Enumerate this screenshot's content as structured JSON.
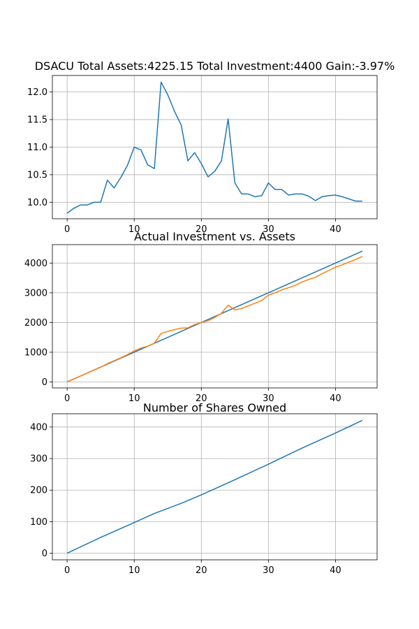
{
  "chart_data": [
    {
      "type": "line",
      "title": "DSACU Total Assets:4225.15  Total Investment:4400  Gain:-3.97%",
      "xlabel": "",
      "ylabel": "",
      "xlim": [
        -2.2,
        46.2
      ],
      "ylim": [
        9.7,
        12.3
      ],
      "xticks": [
        0,
        10,
        20,
        30,
        40
      ],
      "yticks": [
        10.0,
        10.5,
        11.0,
        11.5,
        12.0
      ],
      "ytick_labels": [
        "10.0",
        "10.5",
        "11.0",
        "11.5",
        "12.0"
      ],
      "grid": true,
      "series": [
        {
          "color": "#1f77b4",
          "x": [
            0,
            1,
            2,
            3,
            4,
            5,
            6,
            7,
            8,
            9,
            10,
            11,
            12,
            13,
            14,
            15,
            16,
            17,
            18,
            19,
            20,
            21,
            22,
            23,
            24,
            25,
            26,
            27,
            28,
            29,
            30,
            31,
            32,
            33,
            34,
            35,
            36,
            37,
            38,
            39,
            40,
            41,
            42,
            43,
            44
          ],
          "values": [
            9.8,
            9.89,
            9.95,
            9.95,
            10.0,
            10.0,
            10.4,
            10.26,
            10.45,
            10.67,
            11.0,
            10.95,
            10.68,
            10.61,
            12.18,
            11.95,
            11.65,
            11.4,
            10.75,
            10.9,
            10.7,
            10.46,
            10.56,
            10.75,
            11.51,
            10.35,
            10.15,
            10.15,
            10.1,
            10.12,
            10.35,
            10.23,
            10.23,
            10.13,
            10.15,
            10.15,
            10.11,
            10.03,
            10.1,
            10.12,
            10.13,
            10.1,
            10.06,
            10.02,
            10.02
          ]
        }
      ]
    },
    {
      "type": "line",
      "title": "Actual Investment vs. Assets",
      "xlabel": "",
      "ylabel": "",
      "xlim": [
        -2.2,
        46.2
      ],
      "ylim": [
        -200,
        4620
      ],
      "xticks": [
        0,
        10,
        20,
        30,
        40
      ],
      "yticks": [
        0,
        1000,
        2000,
        3000,
        4000
      ],
      "grid": true,
      "series": [
        {
          "color": "#1f77b4",
          "x": [
            0,
            44
          ],
          "values": [
            0,
            4400
          ]
        },
        {
          "color": "#ff7f0e",
          "x": [
            0,
            1,
            2,
            3,
            4,
            5,
            6,
            7,
            8,
            9,
            10,
            11,
            12,
            13,
            14,
            15,
            16,
            17,
            18,
            19,
            20,
            21,
            22,
            23,
            24,
            25,
            26,
            27,
            28,
            29,
            30,
            31,
            32,
            33,
            34,
            35,
            36,
            37,
            38,
            39,
            40,
            41,
            42,
            43,
            44
          ],
          "values": [
            0,
            99,
            198,
            297,
            396,
            495,
            615,
            713,
            812,
            920,
            1045,
            1140,
            1200,
            1300,
            1630,
            1700,
            1760,
            1810,
            1820,
            1930,
            2000,
            2060,
            2170,
            2310,
            2580,
            2420,
            2470,
            2560,
            2650,
            2740,
            2920,
            3000,
            3100,
            3170,
            3250,
            3360,
            3450,
            3520,
            3640,
            3750,
            3860,
            3940,
            4030,
            4120,
            4225.15
          ]
        }
      ]
    },
    {
      "type": "line",
      "title": "Number of Shares Owned",
      "xlabel": "",
      "ylabel": "",
      "xlim": [
        -2.2,
        46.2
      ],
      "ylim": [
        -21,
        442
      ],
      "xticks": [
        0,
        10,
        20,
        30,
        40
      ],
      "yticks": [
        0,
        100,
        200,
        300,
        400
      ],
      "grid": true,
      "series": [
        {
          "color": "#1f77b4",
          "x": [
            0,
            5,
            10,
            13,
            17,
            20,
            24,
            30,
            35,
            40,
            44
          ],
          "values": [
            0,
            50,
            97,
            126,
            158,
            185,
            223,
            282,
            333,
            381,
            421
          ]
        }
      ]
    }
  ]
}
